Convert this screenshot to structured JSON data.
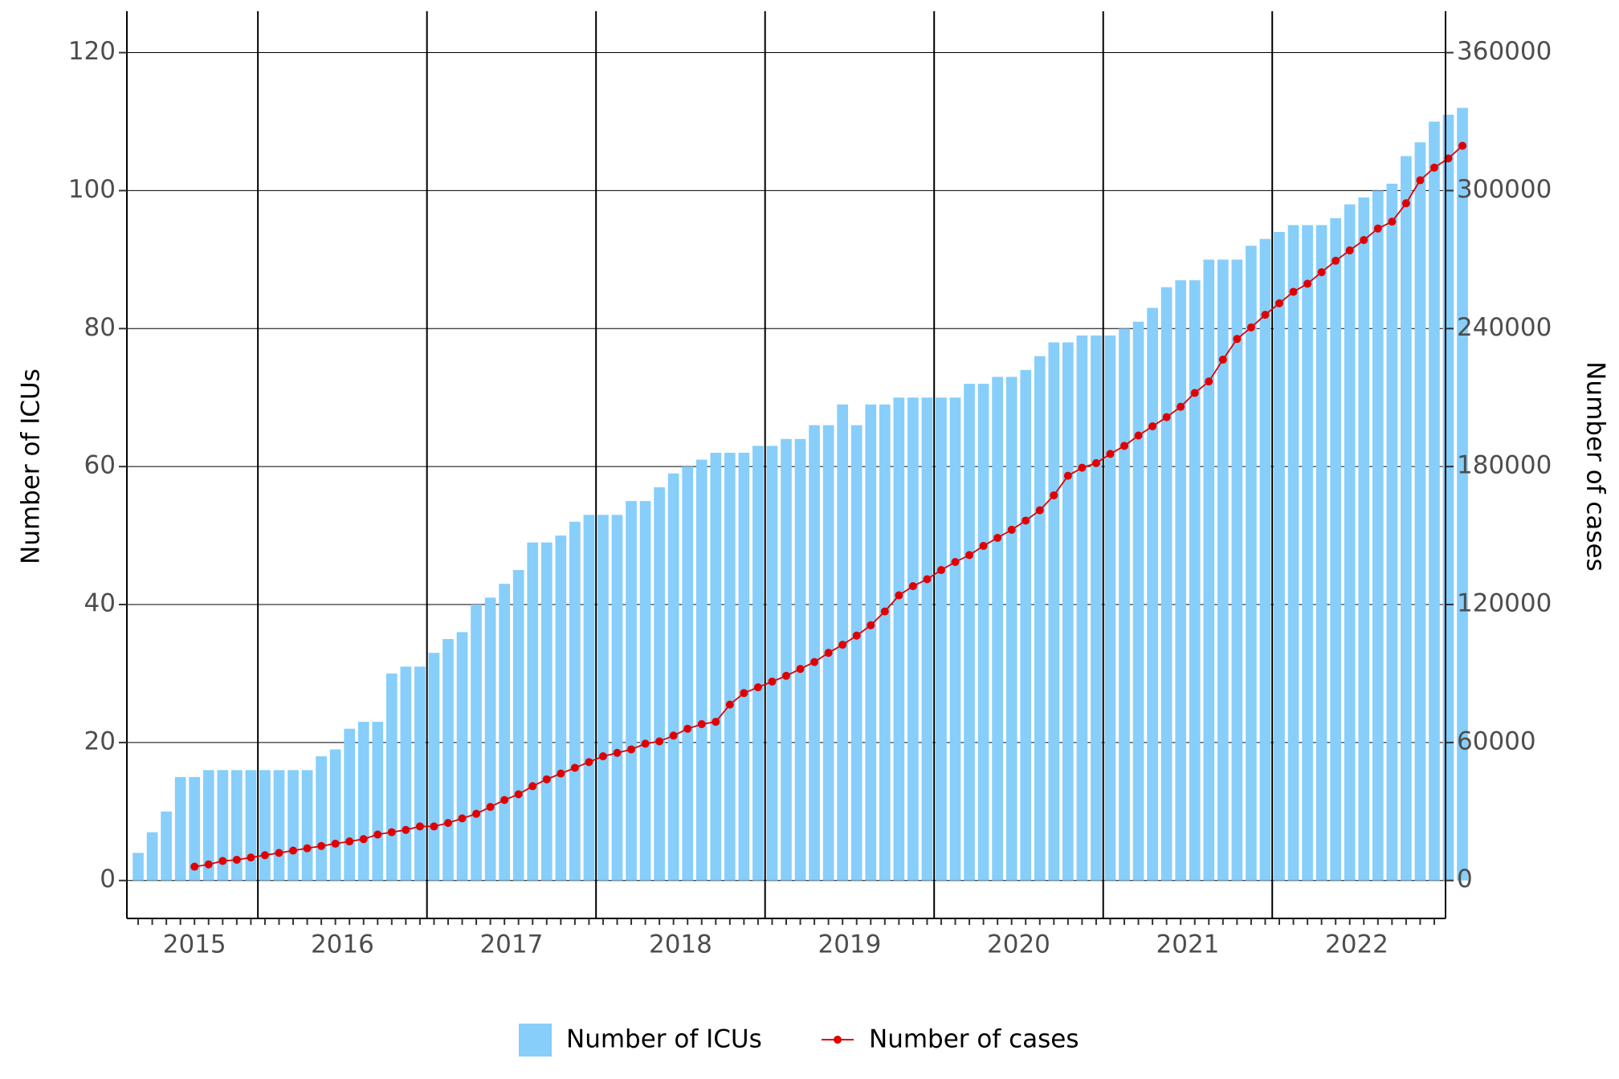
{
  "chart_data": {
    "type": "bar+line",
    "x_axis": {
      "type": "monthly",
      "tick_labels": [
        "2015",
        "2016",
        "2017",
        "2018",
        "2019",
        "2020",
        "2021",
        "2022"
      ],
      "start": "2015-04",
      "end": "2022-12"
    },
    "left_axis": {
      "label": "Number of ICUs",
      "ticks": [
        0,
        20,
        40,
        60,
        80,
        100,
        120
      ],
      "range": [
        -5.5,
        126
      ]
    },
    "right_axis": {
      "label": "Number of cases",
      "ticks": [
        0,
        60000,
        120000,
        180000,
        240000,
        300000,
        360000
      ],
      "range": [
        -16500,
        378000
      ]
    },
    "grid": "horizontal at left-axis ticks; vertical lines at year boundaries",
    "legend": {
      "position": "bottom"
    },
    "series": [
      {
        "name": "Number of ICUs",
        "kind": "bar",
        "axis": "left",
        "color": "#87CEFA",
        "start": "2015-04",
        "values": [
          4,
          7,
          10,
          15,
          15,
          16,
          16,
          16,
          16,
          16,
          16,
          16,
          16,
          18,
          19,
          22,
          23,
          23,
          30,
          31,
          31,
          33,
          35,
          36,
          40,
          41,
          43,
          45,
          49,
          49,
          50,
          52,
          53,
          53,
          53,
          55,
          55,
          57,
          59,
          60,
          61,
          62,
          62,
          62,
          63,
          63,
          64,
          64,
          66,
          66,
          69,
          66,
          69,
          69,
          70,
          70,
          70,
          70,
          70,
          72,
          72,
          73,
          73,
          74,
          76,
          78,
          78,
          79,
          79,
          79,
          80,
          81,
          83,
          86,
          87,
          87,
          90,
          90,
          90,
          92,
          93,
          94,
          95,
          95,
          95,
          96,
          98,
          99,
          100,
          101,
          105,
          107,
          110,
          111,
          112
        ]
      },
      {
        "name": "Number of cases",
        "kind": "line",
        "axis": "right",
        "color": "#E00000",
        "start": "2015-08",
        "values": [
          6000,
          7000,
          8500,
          9000,
          10000,
          11000,
          12000,
          13000,
          14000,
          15000,
          16000,
          17000,
          18000,
          20000,
          21000,
          22000,
          23500,
          23500,
          25000,
          27000,
          29000,
          32000,
          35000,
          37500,
          41000,
          44000,
          46500,
          49000,
          51500,
          54000,
          55500,
          57000,
          59500,
          60500,
          63000,
          66000,
          68000,
          69000,
          76500,
          81500,
          84000,
          86500,
          89000,
          92000,
          95000,
          99000,
          102500,
          106500,
          111000,
          117000,
          124000,
          128000,
          131000,
          135000,
          138500,
          141500,
          145500,
          149000,
          152500,
          156500,
          161000,
          167500,
          176000,
          179500,
          181500,
          185500,
          189000,
          193500,
          197500,
          201500,
          206000,
          212000,
          217000,
          226500,
          235500,
          240500,
          246000,
          251000,
          256000,
          259500,
          264500,
          269500,
          274000,
          278500,
          283500,
          286500,
          294500,
          304500,
          310000,
          314000,
          319500
        ]
      }
    ]
  }
}
